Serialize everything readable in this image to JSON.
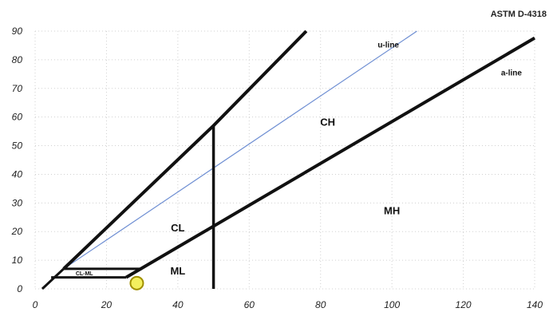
{
  "standard_label": "ASTM D-4318",
  "chart_data": {
    "type": "line",
    "title": "",
    "xlabel": "",
    "ylabel": "",
    "xlim": [
      0,
      140
    ],
    "ylim": [
      0,
      90
    ],
    "x_ticks": [
      0,
      20,
      40,
      60,
      80,
      100,
      120,
      140
    ],
    "y_ticks": [
      0,
      10,
      20,
      30,
      40,
      50,
      60,
      70,
      80,
      90
    ],
    "grid": true,
    "region_labels": {
      "ch": "CH",
      "cl": "CL",
      "mh": "MH",
      "ml": "ML",
      "cl_ml": "CL-ML"
    },
    "line_labels": {
      "u_line": "u-line",
      "a_line": "a-line"
    },
    "lines": {
      "u_line": [
        [
          8,
          7
        ],
        [
          107,
          90
        ]
      ],
      "a_line": [
        [
          25.5,
          4
        ],
        [
          140,
          87.6
        ]
      ],
      "lower_boundary": [
        [
          2,
          0
        ],
        [
          8,
          7
        ]
      ],
      "vertical_ll50": [
        [
          50,
          0
        ],
        [
          50,
          57
        ]
      ],
      "upper_boundary": [
        [
          8,
          7
        ],
        [
          50,
          57
        ],
        [
          76,
          90
        ]
      ],
      "cl_ml_top": [
        [
          8,
          7
        ],
        [
          30,
          7
        ]
      ],
      "cl_ml_bottom": [
        [
          4.5,
          4
        ],
        [
          25.5,
          4
        ]
      ]
    },
    "highlight_point": {
      "x": 28.5,
      "y": 2
    },
    "colors": {
      "main_line": "#111111",
      "u_line": "#6f8fd3",
      "highlight_fill": "#f3ef5f",
      "highlight_stroke": "#a08f00",
      "grid": "#d0d0d0"
    }
  }
}
